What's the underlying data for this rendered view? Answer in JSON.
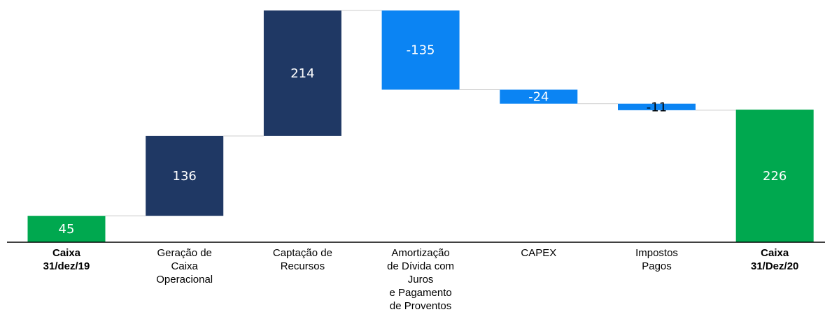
{
  "chart_data": {
    "type": "waterfall",
    "categories": [
      "Caixa\n31/dez/19",
      "Geração de\nCaixa\nOperacional",
      "Captação de\nRecursos",
      "Amortização\nde Dívida com\nJuros\ne Pagamento\nde Proventos",
      "CAPEX",
      "Impostos\nPagos",
      "Caixa\n31/Dez/20"
    ],
    "values": [
      45,
      136,
      214,
      -135,
      -24,
      -11,
      226
    ],
    "is_total": [
      true,
      false,
      false,
      false,
      false,
      false,
      true
    ],
    "colors": [
      "#00a84f",
      "#1f3864",
      "#1f3864",
      "#0b84f3",
      "#0b84f3",
      "#0b84f3",
      "#00a84f"
    ]
  }
}
